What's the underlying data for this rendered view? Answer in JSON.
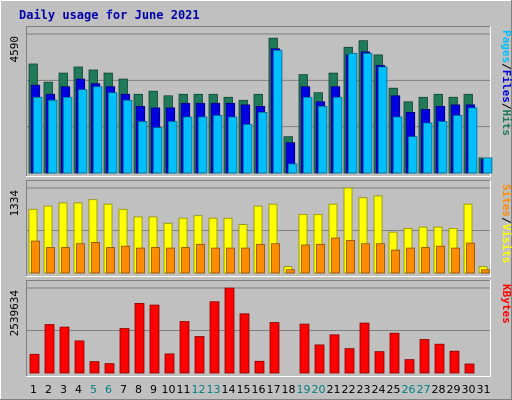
{
  "chart_data": {
    "type": "bar",
    "title": "Daily usage for June 2021",
    "colors": {
      "background": "#c0c0c0",
      "panel": "#c0c0c0",
      "title": "#0000aa",
      "hits": "#1f7a5a",
      "files": "#0000e0",
      "pages": "#00bfff",
      "visits": "#ffff00",
      "sites": "#ff8c00",
      "kbytes": "#ff0000",
      "weekend_label": "#008080",
      "weekday_label": "#000000"
    },
    "categories": [
      "1",
      "2",
      "3",
      "4",
      "5",
      "6",
      "7",
      "8",
      "9",
      "10",
      "11",
      "12",
      "13",
      "14",
      "15",
      "16",
      "17",
      "18",
      "19",
      "20",
      "21",
      "22",
      "23",
      "24",
      "25",
      "26",
      "27",
      "28",
      "29",
      "30",
      "31"
    ],
    "weekend_days": [
      "5",
      "6",
      "12",
      "13",
      "19",
      "20",
      "26",
      "27"
    ],
    "panels": [
      {
        "id": "hits-files-pages",
        "ymax_label": "4590",
        "ymax": 4590,
        "legend": [
          {
            "label": "Pages",
            "color_key": "pages"
          },
          {
            "label": "/",
            "color_key": "weekday_label"
          },
          {
            "label": "Files",
            "color_key": "files"
          },
          {
            "label": "/",
            "color_key": "weekday_label"
          },
          {
            "label": "Hits",
            "color_key": "hits"
          }
        ],
        "series": [
          {
            "key": "hits",
            "values": [
              3600,
              3000,
              3300,
              3500,
              3400,
              3300,
              3100,
              2600,
              2700,
              2550,
              2600,
              2600,
              2600,
              2500,
              2400,
              2600,
              4450,
              1200,
              3250,
              2650,
              3300,
              4150,
              4370,
              3900,
              2800,
              2350,
              2500,
              2600,
              2500,
              2600,
              500
            ]
          },
          {
            "key": "files",
            "values": [
              2900,
              2600,
              2850,
              3100,
              2950,
              2850,
              2600,
              2200,
              2150,
              2150,
              2300,
              2300,
              2300,
              2300,
              2250,
              2200,
              4100,
              1000,
              2850,
              2350,
              2850,
              3900,
              4000,
              3550,
              2550,
              2000,
              2100,
              2200,
              2250,
              2250,
              450
            ]
          },
          {
            "key": "pages",
            "values": [
              2500,
              2400,
              2500,
              2750,
              2850,
              2650,
              2400,
              1700,
              1500,
              1700,
              1850,
              1850,
              1900,
              1850,
              1600,
              2000,
              4050,
              300,
              2500,
              2200,
              2500,
              3950,
              3950,
              3500,
              1850,
              1200,
              1650,
              1700,
              1900,
              2150,
              500
            ]
          }
        ]
      },
      {
        "id": "visits-sites",
        "ymax_label": "1334",
        "ymax": 1334,
        "legend": [
          {
            "label": "Sites",
            "color_key": "sites"
          },
          {
            "label": "/",
            "color_key": "weekday_label"
          },
          {
            "label": "Visits",
            "color_key": "visits"
          }
        ],
        "series": [
          {
            "key": "visits",
            "values": [
              1000,
              1050,
              1100,
              1100,
              1150,
              1080,
              1000,
              880,
              880,
              780,
              860,
              900,
              860,
              860,
              760,
              1050,
              1080,
              100,
              920,
              920,
              1080,
              1334,
              1180,
              1210,
              640,
              700,
              720,
              720,
              700,
              1080,
              100
            ]
          },
          {
            "key": "sites",
            "values": [
              500,
              400,
              400,
              460,
              480,
              400,
              420,
              390,
              400,
              390,
              400,
              450,
              390,
              390,
              390,
              450,
              460,
              50,
              440,
              450,
              550,
              510,
              460,
              460,
              360,
              390,
              400,
              420,
              390,
              470,
              50
            ]
          }
        ]
      },
      {
        "id": "kbytes",
        "ymax_label": "2539634",
        "ymax": 2539634,
        "legend": [
          {
            "label": "KBytes",
            "color_key": "kbytes"
          }
        ],
        "series": [
          {
            "key": "kbytes",
            "values": [
              560000,
              1450000,
              1370000,
              960000,
              340000,
              280000,
              1330000,
              2080000,
              2030000,
              570000,
              1540000,
              1090000,
              2130000,
              2539634,
              1770000,
              350000,
              1510000,
              0,
              1460000,
              840000,
              1140000,
              730000,
              1490000,
              640000,
              1190000,
              400000,
              1000000,
              860000,
              650000,
              270000,
              0
            ]
          }
        ]
      }
    ]
  }
}
